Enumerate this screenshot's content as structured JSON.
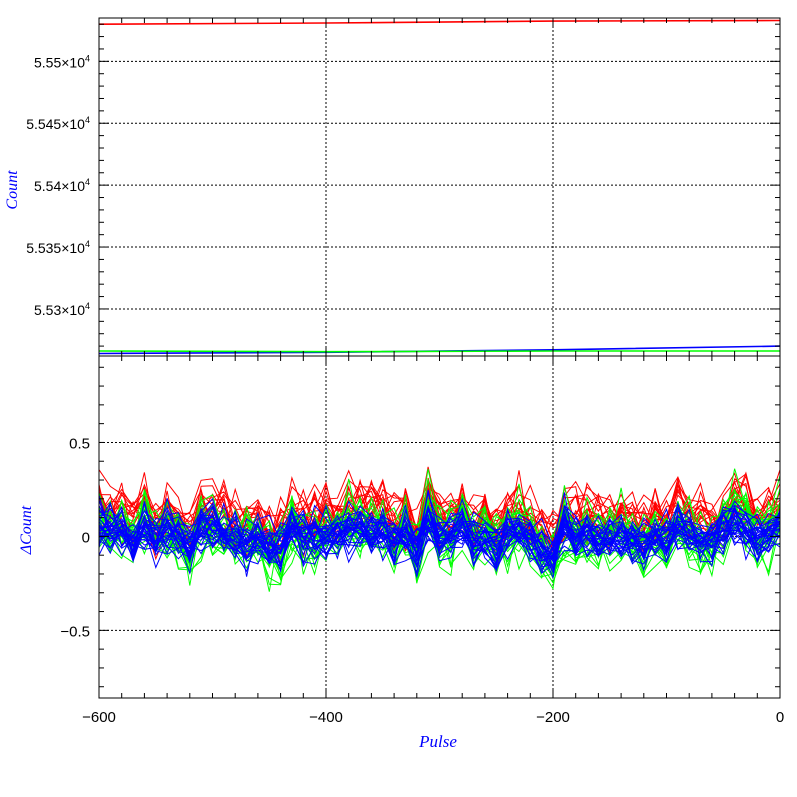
{
  "chart_data": [
    {
      "panel": "top",
      "type": "line",
      "ylabel": "Count",
      "xlim": [
        -600,
        0
      ],
      "ylim": [
        55262,
        55535
      ],
      "yticks": [
        {
          "value": 55300,
          "mant": "5.53×10",
          "exp": "4"
        },
        {
          "value": 55350,
          "mant": "5.535×10",
          "exp": "4"
        },
        {
          "value": 55400,
          "mant": "5.54×10",
          "exp": "4"
        },
        {
          "value": 55450,
          "mant": "5.545×10",
          "exp": "4"
        },
        {
          "value": 55500,
          "mant": "5.55×10",
          "exp": "4"
        }
      ],
      "grid": true,
      "series": [
        {
          "color": "#ff0000",
          "x": [
            -600,
            -400,
            -200,
            0
          ],
          "y": [
            55530,
            55531,
            55532.5,
            55533
          ]
        },
        {
          "color": "#0000ff",
          "x": [
            -600,
            -400,
            -200,
            0
          ],
          "y": [
            55264,
            55265,
            55267,
            55270
          ]
        },
        {
          "color": "#00ff00",
          "x": [
            -600,
            -400,
            -200,
            0
          ],
          "y": [
            55266,
            55265.5,
            55266,
            55266
          ]
        }
      ]
    },
    {
      "panel": "bottom",
      "type": "line",
      "xlabel": "Pulse",
      "ylabel": "ΔCount",
      "xlim": [
        -600,
        0
      ],
      "ylim": [
        -0.86,
        0.96
      ],
      "xticks": [
        -600,
        -400,
        -200,
        0
      ],
      "xtick_labels": [
        "−600",
        "−400",
        "−200",
        "0"
      ],
      "yticks": [
        -0.5,
        0,
        0.5
      ],
      "ytick_labels": [
        "−0.5",
        "0",
        "0.5"
      ],
      "grid": true,
      "x_step": 10,
      "series_groups": [
        {
          "color": "#ff0000",
          "count": 18,
          "offset": 0.1,
          "spread": 0.2
        },
        {
          "color": "#00ff00",
          "count": 22,
          "offset": 0.0,
          "spread": 0.22
        },
        {
          "color": "#0000ff",
          "count": 28,
          "offset": 0.0,
          "spread": 0.16
        }
      ]
    }
  ]
}
